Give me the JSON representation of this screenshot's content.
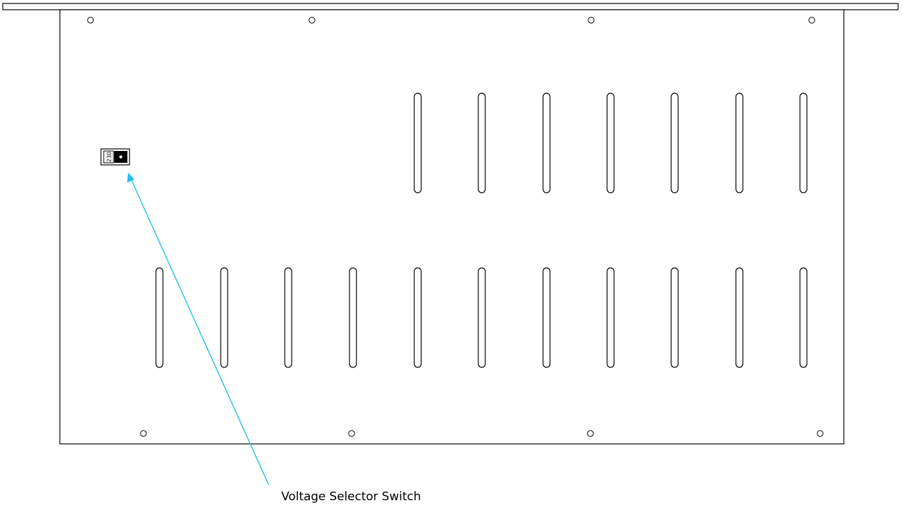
{
  "diagram": {
    "subject": "rear panel",
    "colors": {
      "outline": "#000000",
      "callout": "#1fbfef",
      "switch_fill": "#000000",
      "background": "#ffffff"
    },
    "voltage_switch": {
      "value_label": "230"
    },
    "callout_label": "Voltage Selector Switch"
  }
}
